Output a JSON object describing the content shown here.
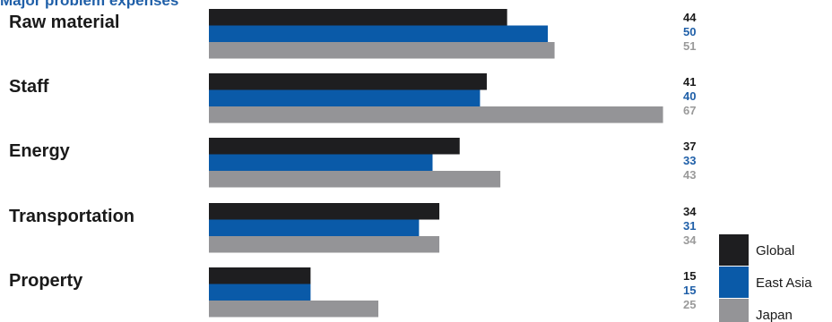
{
  "title": "Major problem expenses",
  "chart_data": {
    "type": "bar",
    "orientation": "horizontal",
    "title": "Major problem expenses",
    "xlabel": "",
    "ylabel": "",
    "categories": [
      "Raw material",
      "Staff",
      "Energy",
      "Transportation",
      "Property"
    ],
    "series": [
      {
        "name": "Global",
        "values": [
          44,
          41,
          37,
          34,
          15
        ],
        "color": "#1e1e20"
      },
      {
        "name": "East Asia",
        "values": [
          50,
          40,
          33,
          31,
          15
        ],
        "color": "#0a5aa8"
      },
      {
        "name": "Japan",
        "values": [
          51,
          67,
          43,
          34,
          25
        ],
        "color": "#949497"
      }
    ],
    "xlim": [
      0,
      67
    ],
    "grid": false,
    "legend": "bottom-right"
  }
}
